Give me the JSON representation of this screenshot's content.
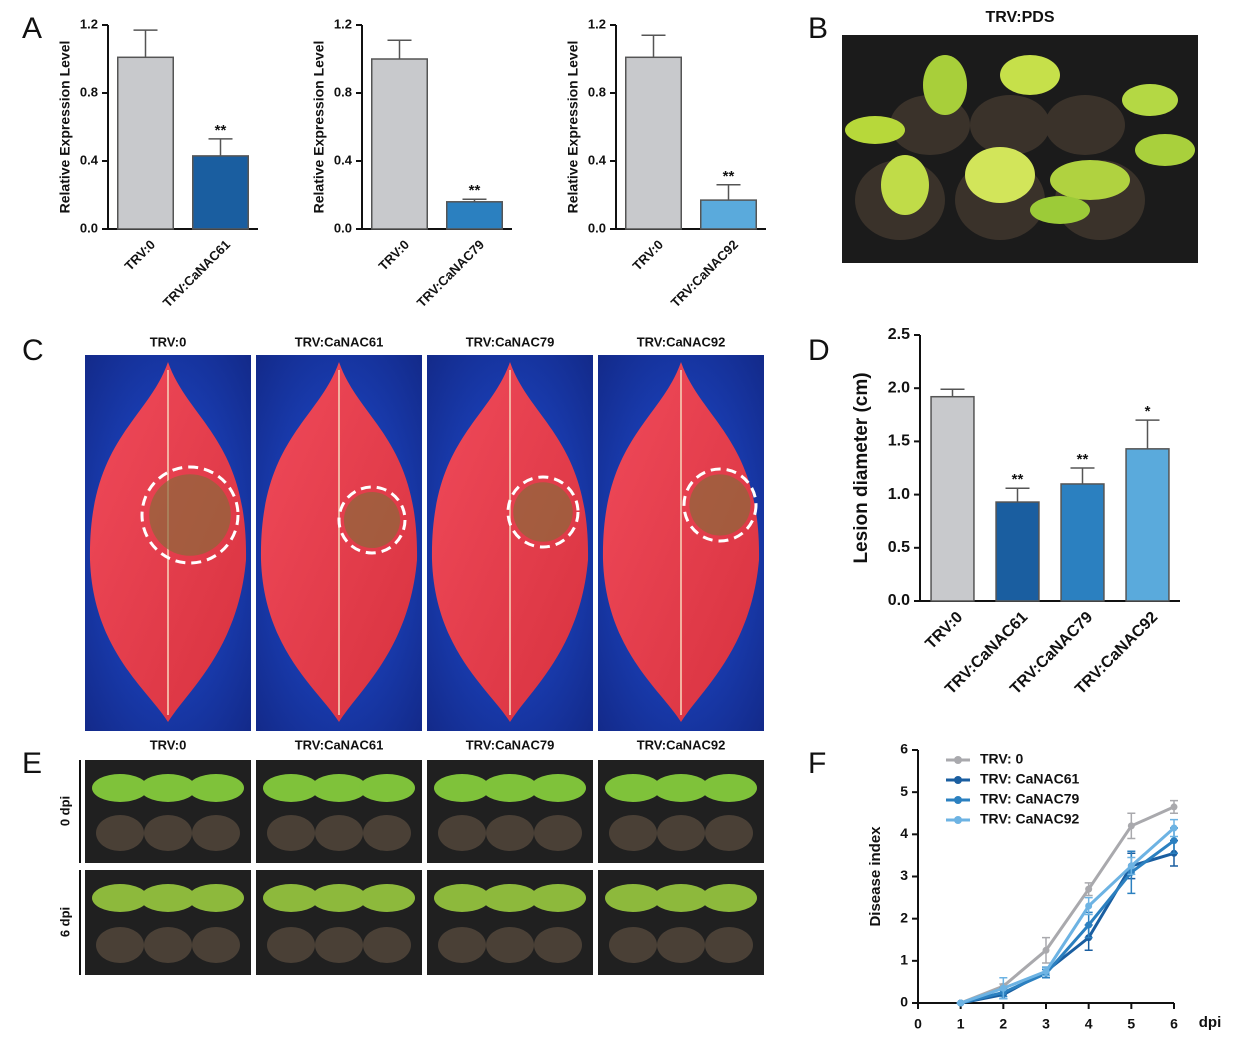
{
  "figure": {
    "panel_labels": [
      "A",
      "B",
      "C",
      "D",
      "E",
      "F"
    ],
    "b_title": "TRV:PDS",
    "c_captions": [
      "TRV:0",
      "TRV:CaNAC61",
      "TRV:CaNAC79",
      "TRV:CaNAC92"
    ],
    "e_captions": [
      "TRV:0",
      "TRV:CaNAC61",
      "TRV:CaNAC79",
      "TRV:CaNAC92"
    ],
    "e_rows": [
      "0 dpi",
      "6 dpi"
    ]
  },
  "chart_data": [
    {
      "type": "bar",
      "y_label": "Relative Expression Level",
      "categories": [
        "TRV:0",
        "TRV:CaNAC61"
      ],
      "values": [
        1.01,
        0.43
      ],
      "errors": [
        0.16,
        0.1
      ],
      "annotations": [
        null,
        "**"
      ],
      "colors": [
        "#c8c9cc",
        "#1a5ea0"
      ],
      "ylim": [
        0,
        1.2
      ],
      "yticks": [
        {
          "value": 0,
          "label": "0.0"
        },
        0.4,
        0.8,
        1.2
      ]
    },
    {
      "type": "bar",
      "y_label": "Relative Expression Level",
      "categories": [
        "TRV:0",
        "TRV:CaNAC79"
      ],
      "values": [
        1.0,
        0.16
      ],
      "errors": [
        0.11,
        0.015
      ],
      "annotations": [
        null,
        "**"
      ],
      "colors": [
        "#c8c9cc",
        "#2b80c0"
      ],
      "ylim": [
        0,
        1.2
      ],
      "yticks": [
        {
          "value": 0,
          "label": "0.0"
        },
        0.4,
        0.8,
        1.2
      ]
    },
    {
      "type": "bar",
      "y_label": "Relative Expression Level",
      "categories": [
        "TRV:0",
        "TRV:CaNAC92"
      ],
      "values": [
        1.01,
        0.17
      ],
      "errors": [
        0.13,
        0.09
      ],
      "annotations": [
        null,
        "**"
      ],
      "colors": [
        "#c8c9cc",
        "#5aaadc"
      ],
      "ylim": [
        0,
        1.2
      ],
      "yticks": [
        {
          "value": 0,
          "label": "0.0"
        },
        0.4,
        0.8,
        1.2
      ]
    },
    {
      "type": "bar",
      "y_label": "Lesion diameter (cm)",
      "categories": [
        "TRV:0",
        "TRV:CaNAC61",
        "TRV:CaNAC79",
        "TRV:CaNAC92"
      ],
      "values": [
        1.92,
        0.93,
        1.1,
        1.43
      ],
      "errors": [
        0.07,
        0.13,
        0.15,
        0.27
      ],
      "annotations": [
        null,
        "**",
        "**",
        "*"
      ],
      "colors": [
        "#c8c9cc",
        "#1a5ea0",
        "#2b80c0",
        "#5aaadc"
      ],
      "ylim": [
        0,
        2.5
      ],
      "yticks": [
        {
          "value": 0,
          "label": "0.0"
        },
        0.5,
        {
          "value": 1,
          "label": "1.0"
        },
        1.5,
        {
          "value": 2,
          "label": "2.0"
        },
        2.5
      ]
    },
    {
      "type": "line",
      "y_label": "Disease index",
      "x_label": "dpi",
      "x": [
        1,
        2,
        3,
        4,
        5,
        6
      ],
      "series": [
        {
          "name": "TRV: 0",
          "color": "#a9a9ad",
          "values": [
            0,
            0.4,
            1.25,
            2.7,
            4.2,
            4.65
          ],
          "errors": [
            0,
            0.05,
            0.3,
            0.15,
            0.3,
            0.15
          ]
        },
        {
          "name": "TRV: CaNAC61",
          "color": "#1a5ea0",
          "values": [
            0,
            0.2,
            0.75,
            1.55,
            3.25,
            3.55
          ],
          "errors": [
            0,
            0.1,
            0.1,
            0.3,
            0.3,
            0.3
          ]
        },
        {
          "name": "TRV: CaNAC79",
          "color": "#2b80c0",
          "values": [
            0,
            0.25,
            0.7,
            1.85,
            3.1,
            3.85
          ],
          "errors": [
            0,
            0.1,
            0.1,
            0.3,
            0.5,
            0.3
          ]
        },
        {
          "name": "TRV: CaNAC92",
          "color": "#6db3e3",
          "values": [
            0,
            0.35,
            0.75,
            2.3,
            3.25,
            4.15
          ],
          "errors": [
            0,
            0.25,
            0.1,
            0.2,
            0.2,
            0.2
          ]
        }
      ],
      "xlim": [
        0,
        6
      ],
      "xticks": [
        0,
        1,
        2,
        3,
        4,
        5,
        6
      ],
      "ylim": [
        0,
        6
      ],
      "yticks": [
        0,
        1,
        2,
        3,
        4,
        5,
        6
      ]
    }
  ]
}
